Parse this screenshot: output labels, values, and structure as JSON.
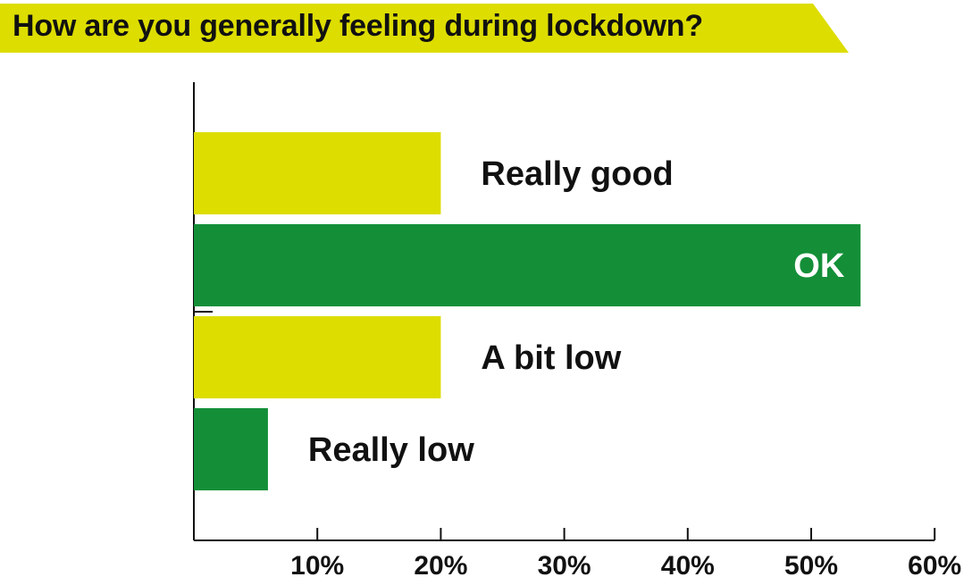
{
  "chart_data": {
    "type": "bar",
    "orientation": "horizontal",
    "title": "How are you generally feeling during lockdown?",
    "categories": [
      "Really good",
      "OK",
      "A bit low",
      "Really low"
    ],
    "values": [
      20,
      54,
      20,
      6
    ],
    "bar_colors": [
      "#dddd00",
      "#148f38",
      "#dddd00",
      "#148f38"
    ],
    "label_inside": [
      false,
      true,
      false,
      false
    ],
    "x_ticks": [
      10,
      20,
      30,
      40,
      50,
      60
    ],
    "x_tick_labels": [
      "10%",
      "20%",
      "30%",
      "40%",
      "50%",
      "60%"
    ],
    "xlim": [
      0,
      60
    ],
    "grid": false,
    "legend": "none"
  },
  "colors": {
    "banner": "#dddd00",
    "yellow_bar": "#dddd00",
    "green_bar": "#148f38",
    "text": "#111111",
    "inside_label": "#ffffff",
    "axis": "#111111"
  }
}
